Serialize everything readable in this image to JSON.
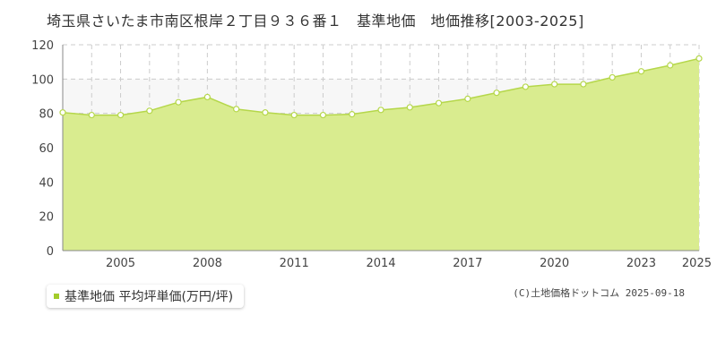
{
  "title": "埼玉県さいたま市南区根岸２丁目９３６番１　基準地価　地価推移[2003-2025]",
  "legend_label": "基準地価 平均坪単価(万円/坪)",
  "copyright": "(C)土地価格ドットコム 2025-09-18",
  "colors": {
    "fill": "#d9ec8f",
    "line": "#b5d74a",
    "point_stroke": "#b5d74a",
    "point_fill": "#ffffff",
    "grid": "#cccccc",
    "legend_swatch": "#a3cc2a"
  },
  "chart_data": {
    "type": "area",
    "x": [
      2003,
      2004,
      2005,
      2006,
      2007,
      2008,
      2009,
      2010,
      2011,
      2012,
      2013,
      2014,
      2015,
      2016,
      2017,
      2018,
      2019,
      2020,
      2021,
      2022,
      2023,
      2024,
      2025
    ],
    "values": [
      80.5,
      79.0,
      79.0,
      81.5,
      86.5,
      89.5,
      82.5,
      80.5,
      79.0,
      79.0,
      79.5,
      82.0,
      83.5,
      86.0,
      88.5,
      92.0,
      95.5,
      97.0,
      97.0,
      101.0,
      104.5,
      108.0,
      112.0
    ],
    "xlim": [
      2003,
      2025
    ],
    "ylim": [
      0,
      120
    ],
    "yticks": [
      0,
      20,
      40,
      60,
      80,
      100,
      120
    ],
    "xtick_labels": [
      2005,
      2008,
      2011,
      2014,
      2017,
      2020,
      2023,
      2025
    ],
    "grid": true,
    "legend_position": "bottom-left"
  }
}
